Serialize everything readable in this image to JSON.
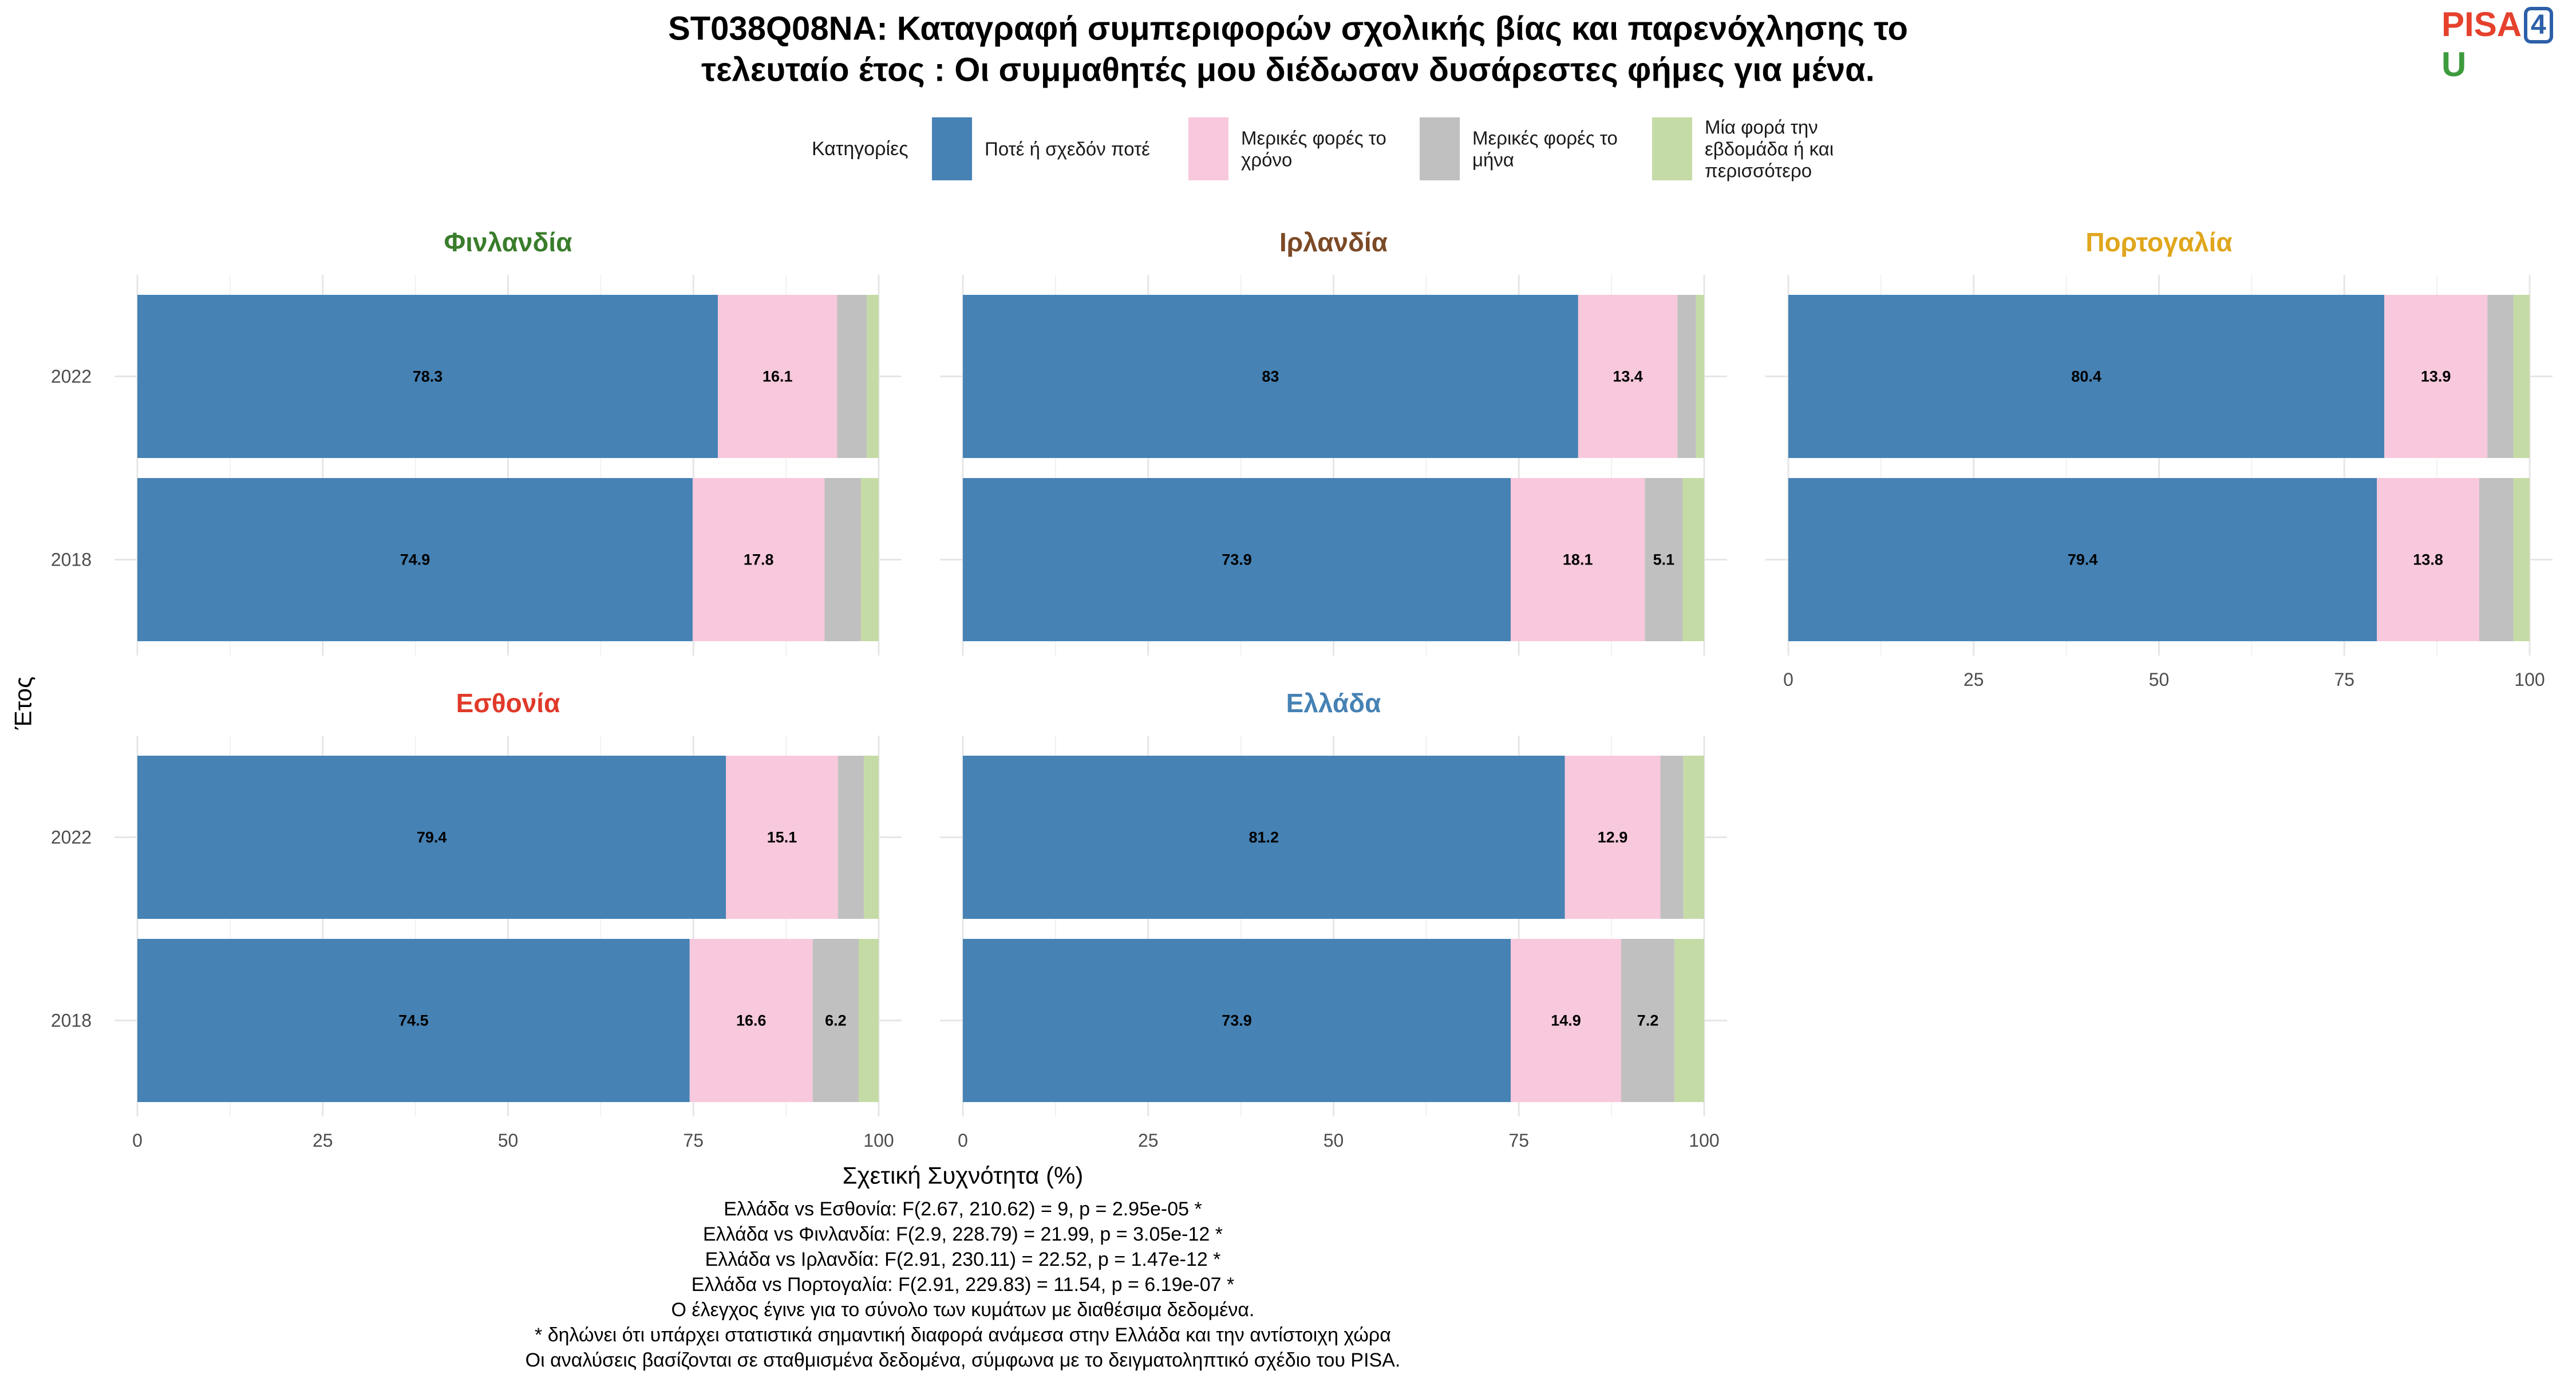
{
  "logo": {
    "part1": "PISA",
    "part2": "4",
    "part3": "U"
  },
  "chart_data": {
    "type": "bar",
    "orientation": "horizontal-stacked",
    "title_lines": [
      "ST038Q08NA: Καταγραφή συμπεριφορών σχολικής βίας και παρενόχλησης το",
      "τελευταίο έτος : Οι συμμαθητές μου διέδωσαν δυσάρεστες φήμες για μένα."
    ],
    "legend": {
      "title": "Κατηγορίες",
      "position": "top",
      "entries": [
        {
          "label_lines": [
            "Ποτέ ή σχεδόν ποτέ"
          ],
          "color": "#4682b4"
        },
        {
          "label_lines": [
            "Μερικές φορές το",
            "χρόνο"
          ],
          "color": "#f8c8dc"
        },
        {
          "label_lines": [
            "Μερικές φορές το",
            "μήνα"
          ],
          "color": "#c0c0c0"
        },
        {
          "label_lines": [
            "Μία φορά την",
            "εβδομάδα ή και",
            "περισσότερο"
          ],
          "color": "#c5dba6"
        }
      ]
    },
    "xlabel": "Σχετική Συχνότητα (%)",
    "ylabel": "Έτος",
    "xlim": [
      0,
      100
    ],
    "x_ticks": [
      0,
      25,
      50,
      75,
      100
    ],
    "grid": true,
    "panels": [
      {
        "name": "Φινλανδία",
        "title_color": "#3a7d2c",
        "bars": [
          {
            "year": "2022",
            "values": [
              78.3,
              16.1,
              4.0,
              1.6
            ],
            "labels": [
              "78.3",
              "16.1",
              "",
              ""
            ]
          },
          {
            "year": "2018",
            "values": [
              74.9,
              17.8,
              4.9,
              2.4
            ],
            "labels": [
              "74.9",
              "17.8",
              "",
              ""
            ]
          }
        ]
      },
      {
        "name": "Ιρλανδία",
        "title_color": "#7b4a26",
        "bars": [
          {
            "year": "2022",
            "values": [
              83.0,
              13.4,
              2.5,
              1.1
            ],
            "labels": [
              "83",
              "13.4",
              "",
              ""
            ]
          },
          {
            "year": "2018",
            "values": [
              73.9,
              18.1,
              5.1,
              2.9
            ],
            "labels": [
              "73.9",
              "18.1",
              "5.1",
              ""
            ]
          }
        ]
      },
      {
        "name": "Πορτογαλία",
        "title_color": "#e0a61c",
        "bars": [
          {
            "year": "2022",
            "values": [
              80.4,
              13.9,
              3.5,
              2.2
            ],
            "labels": [
              "80.4",
              "13.9",
              "",
              ""
            ]
          },
          {
            "year": "2018",
            "values": [
              79.4,
              13.8,
              4.6,
              2.2
            ],
            "labels": [
              "79.4",
              "13.8",
              "",
              ""
            ]
          }
        ]
      },
      {
        "name": "Εσθονία",
        "title_color": "#e03a2a",
        "bars": [
          {
            "year": "2022",
            "values": [
              79.4,
              15.1,
              3.5,
              2.0
            ],
            "labels": [
              "79.4",
              "15.1",
              "",
              ""
            ]
          },
          {
            "year": "2018",
            "values": [
              74.5,
              16.6,
              6.2,
              2.7
            ],
            "labels": [
              "74.5",
              "16.6",
              "6.2",
              ""
            ]
          }
        ]
      },
      {
        "name": "Ελλάδα",
        "title_color": "#4682b4",
        "bars": [
          {
            "year": "2022",
            "values": [
              81.2,
              12.9,
              3.1,
              2.8
            ],
            "labels": [
              "81.2",
              "12.9",
              "",
              ""
            ]
          },
          {
            "year": "2018",
            "values": [
              73.9,
              14.9,
              7.2,
              4.0
            ],
            "labels": [
              "73.9",
              "14.9",
              "7.2",
              ""
            ]
          }
        ]
      }
    ],
    "footnotes": [
      "Ελλάδα vs Εσθονία: F(2.67, 210.62) = 9, p = 2.95e-05 *",
      "Ελλάδα vs Φινλανδία: F(2.9, 228.79) = 21.99, p = 3.05e-12 *",
      "Ελλάδα vs Ιρλανδία: F(2.91, 230.11) = 22.52, p = 1.47e-12 *",
      "Ελλάδα vs Πορτογαλία: F(2.91, 229.83) = 11.54, p = 6.19e-07 *",
      "Ο έλεγχος έγινε για το σύνολο των κυμάτων με διαθέσιμα δεδομένα.",
      "* δηλώνει ότι υπάρχει στατιστικά σημαντική διαφορά ανάμεσα στην Ελλάδα και την αντίστοιχη χώρα",
      "Οι αναλύσεις βασίζονται σε σταθμισμένα δεδομένα, σύμφωνα με το δειγματοληπτικό σχέδιο του PISA."
    ]
  }
}
